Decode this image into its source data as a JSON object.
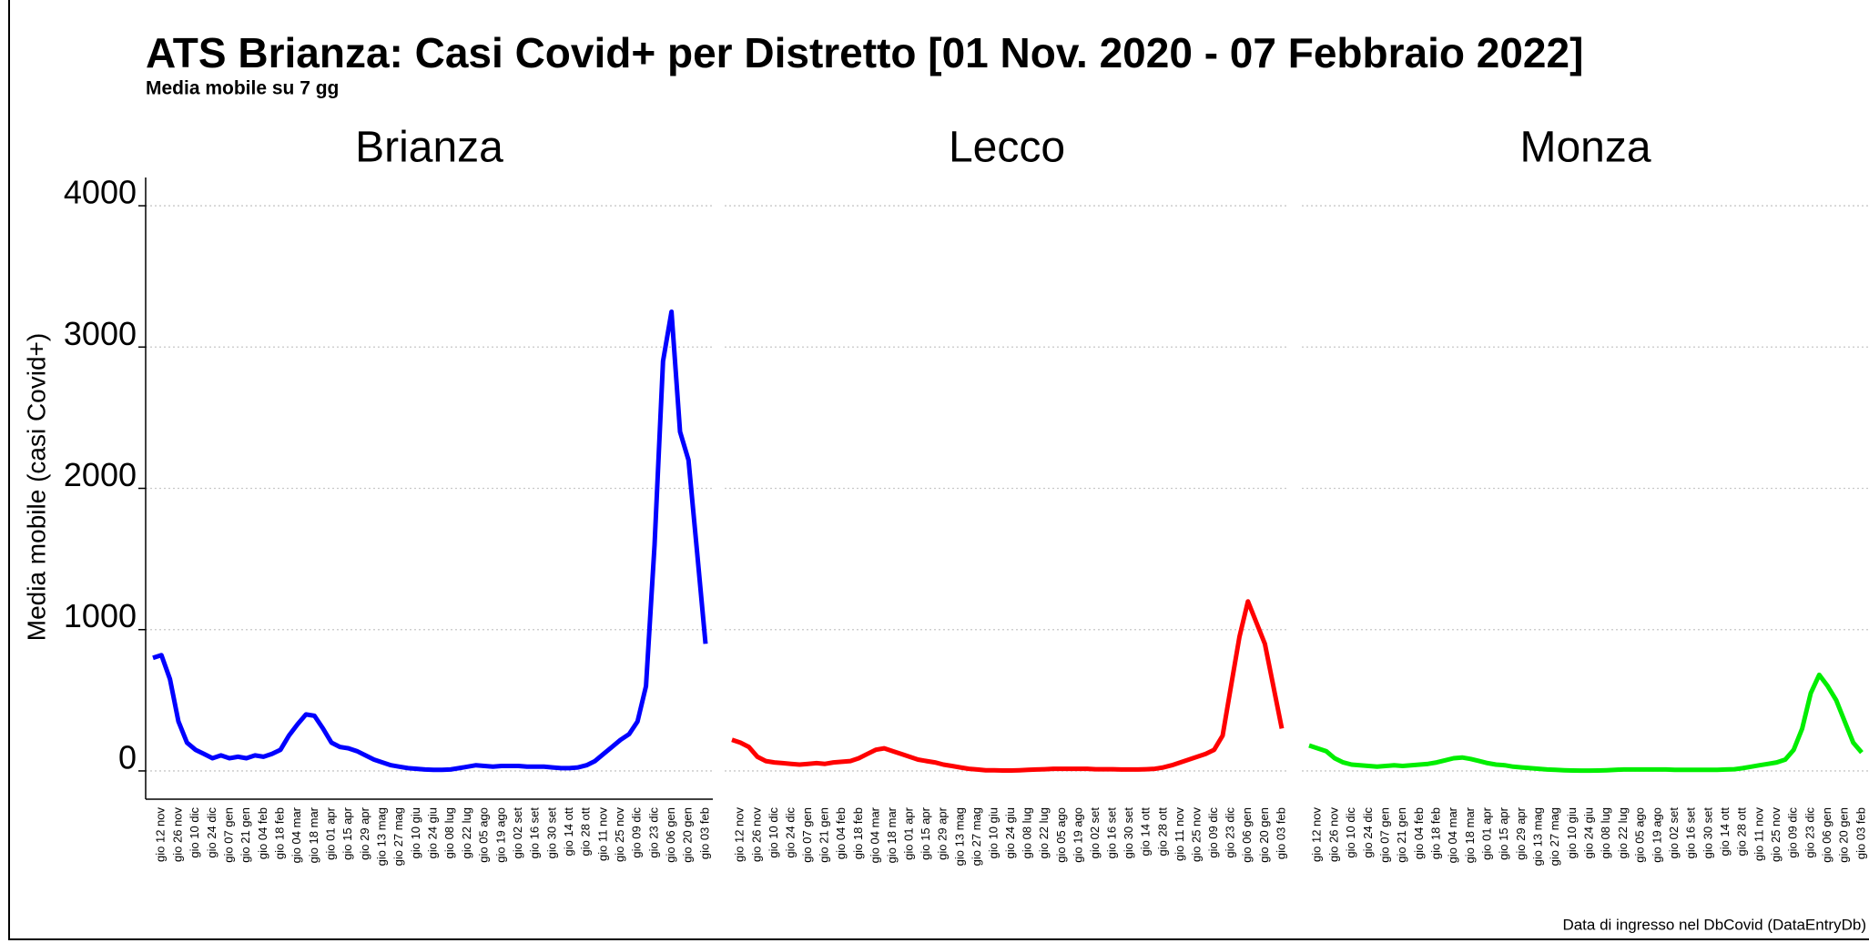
{
  "header": {
    "title": "ATS Brianza: Casi Covid+ per Distretto [01 Nov. 2020 - 07 Febbraio 2022]",
    "subtitle": "Media mobile su 7 gg"
  },
  "footer": "Data di ingresso nel DbCovid (DataEntryDb)",
  "chart_data": [
    {
      "type": "line",
      "title": "Brianza",
      "y_label": "Media mobile (casi Covid+)",
      "ylim": [
        -200,
        4200
      ],
      "yticks": [
        0,
        1000,
        2000,
        3000,
        4000
      ],
      "grid": true,
      "categories": [
        null,
        "gio 12 nov",
        null,
        "gio 26 nov",
        null,
        "gio 10 dic",
        null,
        "gio 24 dic",
        null,
        "gio 07 gen",
        null,
        "gio 21 gen",
        null,
        "gio 04 feb",
        null,
        "gio 18 feb",
        null,
        "gio 04 mar",
        null,
        "gio 18 mar",
        null,
        "gio 01 apr",
        null,
        "gio 15 apr",
        null,
        "gio 29 apr",
        null,
        "gio 13 mag",
        null,
        "gio 27 mag",
        null,
        "gio 10 giu",
        null,
        "gio 24 giu",
        null,
        "gio 08 lug",
        null,
        "gio 22 lug",
        null,
        "gio 05 ago",
        null,
        "gio 19 ago",
        null,
        "gio 02 set",
        null,
        "gio 16 set",
        null,
        "gio 30 set",
        null,
        "gio 14 ott",
        null,
        "gio 28 ott",
        null,
        "gio 11 nov",
        null,
        "gio 25 nov",
        null,
        "gio 09 dic",
        null,
        "gio 23 dic",
        null,
        "gio 06 gen",
        null,
        "gio 20 gen",
        null,
        "gio 03 feb"
      ],
      "series": [
        {
          "color": "#0000ff",
          "values": [
            800,
            820,
            650,
            350,
            200,
            150,
            120,
            90,
            110,
            90,
            100,
            90,
            110,
            100,
            120,
            150,
            250,
            330,
            400,
            390,
            300,
            200,
            170,
            160,
            140,
            110,
            80,
            60,
            40,
            30,
            20,
            15,
            10,
            8,
            8,
            10,
            20,
            30,
            40,
            35,
            30,
            35,
            35,
            35,
            30,
            30,
            30,
            25,
            20,
            20,
            25,
            40,
            70,
            120,
            170,
            220,
            260,
            350,
            600,
            1600,
            2900,
            3250,
            2400,
            2200,
            1550,
            900
          ]
        }
      ]
    },
    {
      "type": "line",
      "title": "Lecco",
      "ylim": [
        -200,
        4200
      ],
      "yticks": [
        0,
        1000,
        2000,
        3000,
        4000
      ],
      "grid": true,
      "categories": [
        null,
        "gio 12 nov",
        null,
        "gio 26 nov",
        null,
        "gio 10 dic",
        null,
        "gio 24 dic",
        null,
        "gio 07 gen",
        null,
        "gio 21 gen",
        null,
        "gio 04 feb",
        null,
        "gio 18 feb",
        null,
        "gio 04 mar",
        null,
        "gio 18 mar",
        null,
        "gio 01 apr",
        null,
        "gio 15 apr",
        null,
        "gio 29 apr",
        null,
        "gio 13 mag",
        null,
        "gio 27 mag",
        null,
        "gio 10 giu",
        null,
        "gio 24 giu",
        null,
        "gio 08 lug",
        null,
        "gio 22 lug",
        null,
        "gio 05 ago",
        null,
        "gio 19 ago",
        null,
        "gio 02 set",
        null,
        "gio 16 set",
        null,
        "gio 30 set",
        null,
        "gio 14 ott",
        null,
        "gio 28 ott",
        null,
        "gio 11 nov",
        null,
        "gio 25 nov",
        null,
        "gio 09 dic",
        null,
        "gio 23 dic",
        null,
        "gio 06 gen",
        null,
        "gio 20 gen",
        null,
        "gio 03 feb"
      ],
      "series": [
        {
          "color": "#ff0000",
          "values": [
            220,
            200,
            170,
            100,
            70,
            60,
            55,
            50,
            45,
            50,
            55,
            50,
            60,
            65,
            70,
            90,
            120,
            150,
            160,
            140,
            120,
            100,
            80,
            70,
            60,
            45,
            35,
            25,
            15,
            10,
            5,
            5,
            3,
            3,
            5,
            8,
            10,
            12,
            15,
            15,
            15,
            15,
            15,
            12,
            12,
            12,
            10,
            10,
            10,
            12,
            15,
            25,
            40,
            60,
            80,
            100,
            120,
            150,
            250,
            600,
            950,
            1200,
            1050,
            900,
            600,
            300
          ]
        }
      ]
    },
    {
      "type": "line",
      "title": "Monza",
      "ylim": [
        -200,
        4200
      ],
      "yticks": [
        0,
        1000,
        2000,
        3000,
        4000
      ],
      "grid": true,
      "categories": [
        null,
        "gio 12 nov",
        null,
        "gio 26 nov",
        null,
        "gio 10 dic",
        null,
        "gio 24 dic",
        null,
        "gio 07 gen",
        null,
        "gio 21 gen",
        null,
        "gio 04 feb",
        null,
        "gio 18 feb",
        null,
        "gio 04 mar",
        null,
        "gio 18 mar",
        null,
        "gio 01 apr",
        null,
        "gio 15 apr",
        null,
        "gio 29 apr",
        null,
        "gio 13 mag",
        null,
        "gio 27 mag",
        null,
        "gio 10 giu",
        null,
        "gio 24 giu",
        null,
        "gio 08 lug",
        null,
        "gio 22 lug",
        null,
        "gio 05 ago",
        null,
        "gio 19 ago",
        null,
        "gio 02 set",
        null,
        "gio 16 set",
        null,
        "gio 30 set",
        null,
        "gio 14 ott",
        null,
        "gio 28 ott",
        null,
        "gio 11 nov",
        null,
        "gio 25 nov",
        null,
        "gio 09 dic",
        null,
        "gio 23 dic",
        null,
        "gio 06 gen",
        null,
        "gio 20 gen",
        null,
        "gio 03 feb"
      ],
      "series": [
        {
          "color": "#00ee00",
          "values": [
            180,
            160,
            140,
            90,
            60,
            45,
            40,
            35,
            30,
            35,
            40,
            35,
            40,
            45,
            50,
            60,
            75,
            90,
            95,
            85,
            70,
            55,
            45,
            40,
            30,
            25,
            20,
            15,
            10,
            8,
            5,
            3,
            2,
            2,
            3,
            5,
            8,
            10,
            10,
            10,
            10,
            10,
            10,
            8,
            8,
            8,
            8,
            8,
            8,
            10,
            12,
            20,
            30,
            40,
            50,
            60,
            80,
            150,
            300,
            550,
            680,
            600,
            500,
            350,
            200,
            130
          ]
        }
      ]
    }
  ]
}
